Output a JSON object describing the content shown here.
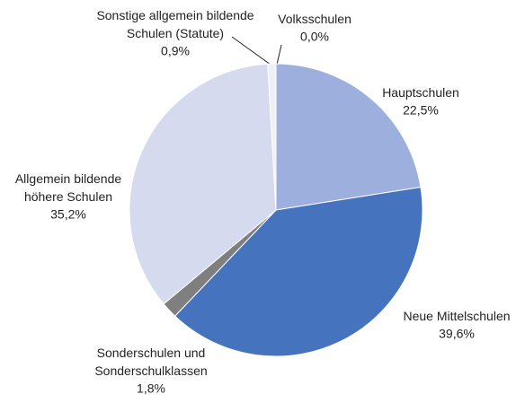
{
  "chart_data": {
    "type": "pie",
    "categories": [
      "Volksschulen",
      "Hauptschulen",
      "Neue Mittelschulen",
      "Sonderschulen und Sonderschulklassen",
      "Allgemein bildende höhere Schulen",
      "Sonstige allgemein bildende Schulen (Statute)"
    ],
    "values": [
      0.0,
      22.5,
      39.6,
      1.8,
      35.2,
      0.9
    ],
    "value_labels": [
      "0,0%",
      "22,5%",
      "39,6%",
      "1,8%",
      "35,2%",
      "0,9%"
    ],
    "colors": [
      "#2f4f8f",
      "#9dafdc",
      "#4573bd",
      "#7f7f7f",
      "#d5daee",
      "#eef0f8"
    ]
  }
}
